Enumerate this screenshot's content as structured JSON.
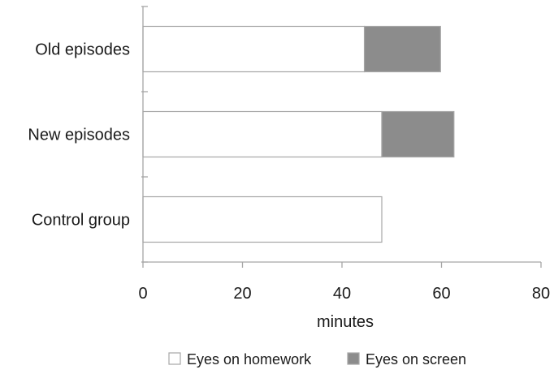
{
  "chart_data": {
    "type": "bar",
    "orientation": "horizontal",
    "stacked": true,
    "categories": [
      "Old episodes",
      "New episodes",
      "Control group"
    ],
    "series": [
      {
        "name": "Eyes on homework",
        "values": [
          44.5,
          48.0,
          48.0
        ],
        "color": "#ffffff"
      },
      {
        "name": "Eyes on screen",
        "values": [
          15.3,
          14.5,
          0
        ],
        "color": "#8c8c8c"
      }
    ],
    "xlabel": "minutes",
    "xlim": [
      0,
      80
    ],
    "xticks": [
      "0",
      "20",
      "40",
      "60",
      "80"
    ],
    "grid": false,
    "legend_position": "bottom"
  }
}
